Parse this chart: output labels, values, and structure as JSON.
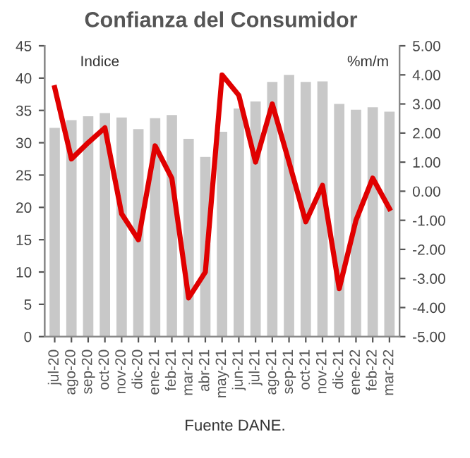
{
  "chart_data": {
    "type": "bar",
    "title": "Confianza del Consumidor",
    "ylabel": "Indice",
    "y2label": "%m/m",
    "categories": [
      "jul-20",
      "ago-20",
      "sep-20",
      "oct-20",
      "nov-20",
      "dic-20",
      "ene-21",
      "feb-21",
      "mar-21",
      "abr-21",
      "may-21",
      "jun-21",
      "jul-21",
      "ago-21",
      "sep-21",
      "oct-21",
      "nov-21",
      "dic-21",
      "ene-22",
      "feb-22",
      "mar-22"
    ],
    "series": [
      {
        "color": "#c8c8c8",
        "values": [
          32.3,
          33.5,
          34.1,
          34.6,
          33.9,
          32.1,
          33.8,
          34.3,
          30.6,
          27.8,
          31.7,
          35.3,
          36.4,
          39.4,
          40.5,
          39.4,
          39.5,
          36.0,
          35.1,
          35.5,
          34.8
        ]
      },
      {
        "type": "line",
        "axis": "y2",
        "color": "#e00000",
        "values": [
          3.56,
          1.11,
          1.67,
          2.18,
          -0.78,
          -1.67,
          1.56,
          0.44,
          -3.67,
          -2.78,
          4.0,
          3.3,
          1.0,
          3.0,
          1.0,
          -1.05,
          0.2,
          -3.35,
          -1.0,
          0.45,
          -0.6
        ]
      }
    ],
    "ylim": [
      0,
      45
    ],
    "yticks": [
      0,
      5,
      10,
      15,
      20,
      25,
      30,
      35,
      40,
      45
    ],
    "y2lim": [
      -5,
      5
    ],
    "y2ticks": [
      {
        "value": -5,
        "label": "-5.00"
      },
      {
        "value": -4,
        "label": "-4.00"
      },
      {
        "value": -3,
        "label": "-3.00"
      },
      {
        "value": -2,
        "label": "-2.00"
      },
      {
        "value": -1,
        "label": "-1.00"
      },
      {
        "value": 0,
        "label": "0.00"
      },
      {
        "value": 1,
        "label": "1.00"
      },
      {
        "value": 2,
        "label": "2.00"
      },
      {
        "value": 3,
        "label": "3.00"
      },
      {
        "value": 4,
        "label": "4.00"
      },
      {
        "value": 5,
        "label": "5.00"
      }
    ],
    "grid": false,
    "legend": false,
    "annotations": [
      "Fuente DANE."
    ]
  }
}
